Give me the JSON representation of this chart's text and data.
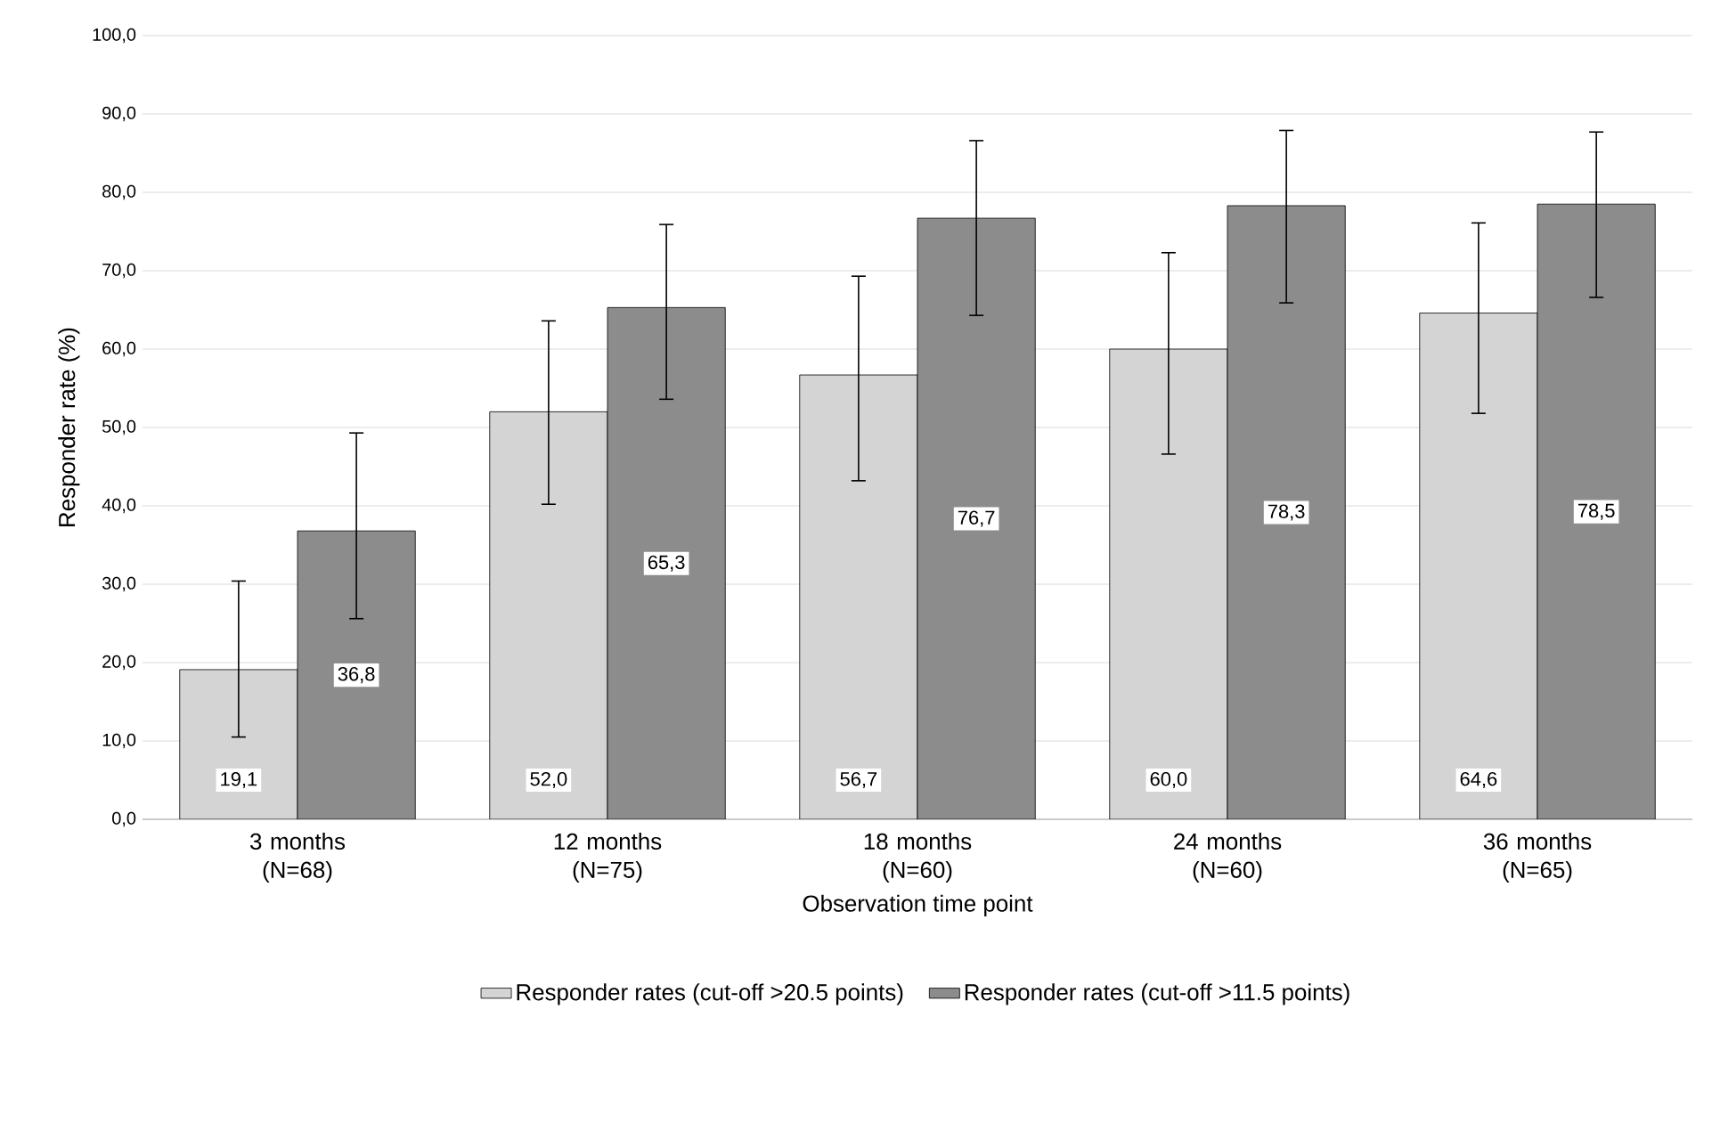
{
  "chart_data": {
    "type": "bar",
    "xlabel": "Observation time point",
    "ylabel": "Responder rate (%)",
    "categories": [
      "3 months (N=68)",
      "12 months (N=75)",
      "18 months (N=60)",
      "24 months (N=60)",
      "36 months (N=65)"
    ],
    "series": [
      {
        "name": "Responder rates (cut-off >20.5 points)",
        "color": "#d4d4d4",
        "values": [
          19.1,
          52.0,
          56.7,
          60.0,
          64.6
        ],
        "value_labels": [
          "19,1",
          "52,0",
          "56,7",
          "60,0",
          "64,6"
        ],
        "errors": [
          [
            10.5,
            30.4
          ],
          [
            40.2,
            63.6
          ],
          [
            43.2,
            69.3
          ],
          [
            46.6,
            72.3
          ],
          [
            51.8,
            76.1
          ]
        ]
      },
      {
        "name": "Responder rates (cut-off >11.5 points)",
        "color": "#8c8c8c",
        "values": [
          36.8,
          65.3,
          76.7,
          78.3,
          78.5
        ],
        "value_labels": [
          "36,8",
          "65,3",
          "76,7",
          "78,3",
          "78,5"
        ],
        "errors": [
          [
            25.6,
            49.3
          ],
          [
            53.6,
            75.9
          ],
          [
            64.3,
            86.6
          ],
          [
            65.9,
            87.9
          ],
          [
            66.6,
            87.7
          ]
        ]
      }
    ],
    "ylim": [
      0,
      100
    ],
    "yticks": [
      {
        "value": 0,
        "label": "0,0"
      },
      {
        "value": 10,
        "label": "10,0"
      },
      {
        "value": 20,
        "label": "20,0"
      },
      {
        "value": 30,
        "label": "30,0"
      },
      {
        "value": 40,
        "label": "40,0"
      },
      {
        "value": 50,
        "label": "50,0"
      },
      {
        "value": 60,
        "label": "60,0"
      },
      {
        "value": 70,
        "label": "70,0"
      },
      {
        "value": 80,
        "label": "80,0"
      },
      {
        "value": 90,
        "label": "90,0"
      },
      {
        "value": 100,
        "label": "100,0"
      }
    ],
    "grid": "y",
    "legend": "bottom"
  }
}
